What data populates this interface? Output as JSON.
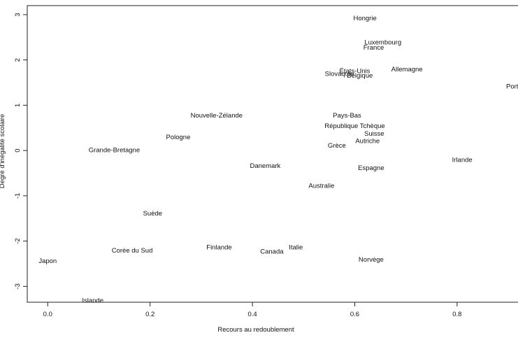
{
  "chart_data": {
    "type": "scatter",
    "title": "",
    "xlabel": "Recours au redoublement",
    "ylabel": "Degré d'inégalité scolaire",
    "xlim": [
      -0.04,
      0.945
    ],
    "ylim": [
      -3.35,
      3.2
    ],
    "x_ticks": [
      "0.0",
      "0.2",
      "0.4",
      "0.6",
      "0.8"
    ],
    "y_ticks": [
      "-3",
      "-2",
      "-1",
      "0",
      "1",
      "2",
      "3"
    ],
    "points": [
      {
        "label": "Hongrie",
        "x": 0.62,
        "y": 2.93
      },
      {
        "label": "Luxembourg",
        "x": 0.655,
        "y": 2.4
      },
      {
        "label": "France",
        "x": 0.637,
        "y": 2.28
      },
      {
        "label": "Allemagne",
        "x": 0.702,
        "y": 1.8
      },
      {
        "label": "États-Unis",
        "x": 0.6,
        "y": 1.76
      },
      {
        "label": "Slovaquie",
        "x": 0.57,
        "y": 1.7
      },
      {
        "label": "Belgique",
        "x": 0.61,
        "y": 1.66
      },
      {
        "label": "Portugal",
        "x": 0.92,
        "y": 1.42
      },
      {
        "label": "Pays-Bas",
        "x": 0.585,
        "y": 0.78
      },
      {
        "label": "République Tchèque",
        "x": 0.6,
        "y": 0.55
      },
      {
        "label": "Suisse",
        "x": 0.638,
        "y": 0.38
      },
      {
        "label": "Autriche",
        "x": 0.625,
        "y": 0.22
      },
      {
        "label": "Grèce",
        "x": 0.565,
        "y": 0.12
      },
      {
        "label": "Nouvelle-Zélande",
        "x": 0.33,
        "y": 0.78
      },
      {
        "label": "Pologne",
        "x": 0.255,
        "y": 0.3
      },
      {
        "label": "Grande-Bretagne",
        "x": 0.13,
        "y": 0.02
      },
      {
        "label": "Danemark",
        "x": 0.425,
        "y": -0.33
      },
      {
        "label": "Espagne",
        "x": 0.632,
        "y": -0.38
      },
      {
        "label": "Irlande",
        "x": 0.81,
        "y": -0.2
      },
      {
        "label": "Australie",
        "x": 0.535,
        "y": -0.77
      },
      {
        "label": "Suède",
        "x": 0.205,
        "y": -1.38
      },
      {
        "label": "Corée du Sud",
        "x": 0.165,
        "y": -2.2
      },
      {
        "label": "Finlande",
        "x": 0.335,
        "y": -2.13
      },
      {
        "label": "Canada",
        "x": 0.438,
        "y": -2.22
      },
      {
        "label": "Italie",
        "x": 0.485,
        "y": -2.13
      },
      {
        "label": "Norvège",
        "x": 0.632,
        "y": -2.4
      },
      {
        "label": "Japon",
        "x": 0.0,
        "y": -2.43
      },
      {
        "label": "Islande",
        "x": 0.088,
        "y": -3.3
      }
    ]
  }
}
